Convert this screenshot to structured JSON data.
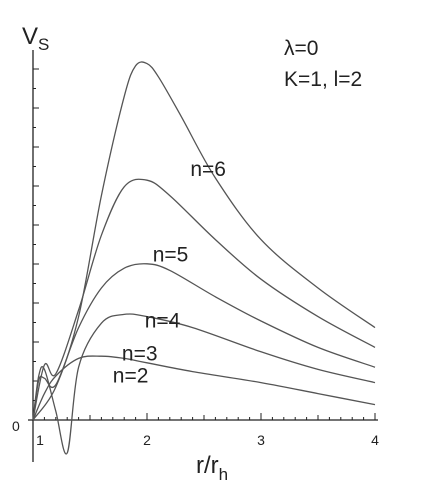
{
  "chart_data": {
    "type": "line",
    "ylabel": "V",
    "ylabel_sub": "S",
    "xlabel": "r/r",
    "xlabel_sub": "h",
    "y_origin_label": "0",
    "xticks": [
      "1",
      "2",
      "3",
      "4"
    ],
    "xlim": [
      0.98,
      4.0
    ],
    "ylim": [
      -0.9,
      8.6
    ],
    "grid": false,
    "params": [
      "λ=0",
      "K=1, l=2"
    ],
    "series": [
      {
        "name": "n=6",
        "x": [
          1.0,
          1.2,
          1.4,
          1.6,
          1.8,
          1.9,
          2.0,
          2.1,
          2.3,
          2.6,
          3.0,
          3.5,
          4.0
        ],
        "y": [
          0.0,
          0.75,
          2.35,
          5.1,
          7.35,
          8.05,
          8.1,
          7.8,
          6.9,
          5.5,
          4.1,
          3.0,
          2.1
        ]
      },
      {
        "name": "n=5",
        "x": [
          1.0,
          1.1,
          1.2,
          1.4,
          1.6,
          1.8,
          2.0,
          2.2,
          2.6,
          3.0,
          3.5,
          4.0
        ],
        "y": [
          0.0,
          1.25,
          1.05,
          2.5,
          4.2,
          5.3,
          5.45,
          5.1,
          4.1,
          3.2,
          2.35,
          1.65
        ]
      },
      {
        "name": "n=4",
        "x": [
          1.0,
          1.05,
          1.1,
          1.2,
          1.4,
          1.6,
          1.8,
          2.0,
          2.2,
          2.6,
          3.0,
          3.5,
          4.0
        ],
        "y": [
          0.0,
          0.9,
          0.95,
          0.8,
          2.1,
          3.0,
          3.45,
          3.55,
          3.4,
          2.8,
          2.25,
          1.65,
          1.2
        ]
      },
      {
        "name": "n=3",
        "x": [
          1.0,
          1.05,
          1.1,
          1.2,
          1.3,
          1.4,
          1.6,
          1.8,
          2.0,
          2.4,
          3.0,
          3.5,
          4.0
        ],
        "y": [
          0.0,
          1.0,
          1.15,
          0.2,
          -0.75,
          1.2,
          2.2,
          2.4,
          2.35,
          2.1,
          1.55,
          1.15,
          0.85
        ]
      },
      {
        "name": "n=2",
        "x": [
          1.0,
          1.1,
          1.2,
          1.4,
          1.6,
          1.8,
          2.0,
          2.4,
          3.0,
          3.5,
          4.0
        ],
        "y": [
          0.0,
          0.6,
          1.0,
          1.4,
          1.45,
          1.4,
          1.3,
          1.1,
          0.85,
          0.6,
          0.35
        ]
      }
    ]
  },
  "colors": {
    "curve": "#555555",
    "axis": "#222222",
    "text": "#222222"
  }
}
